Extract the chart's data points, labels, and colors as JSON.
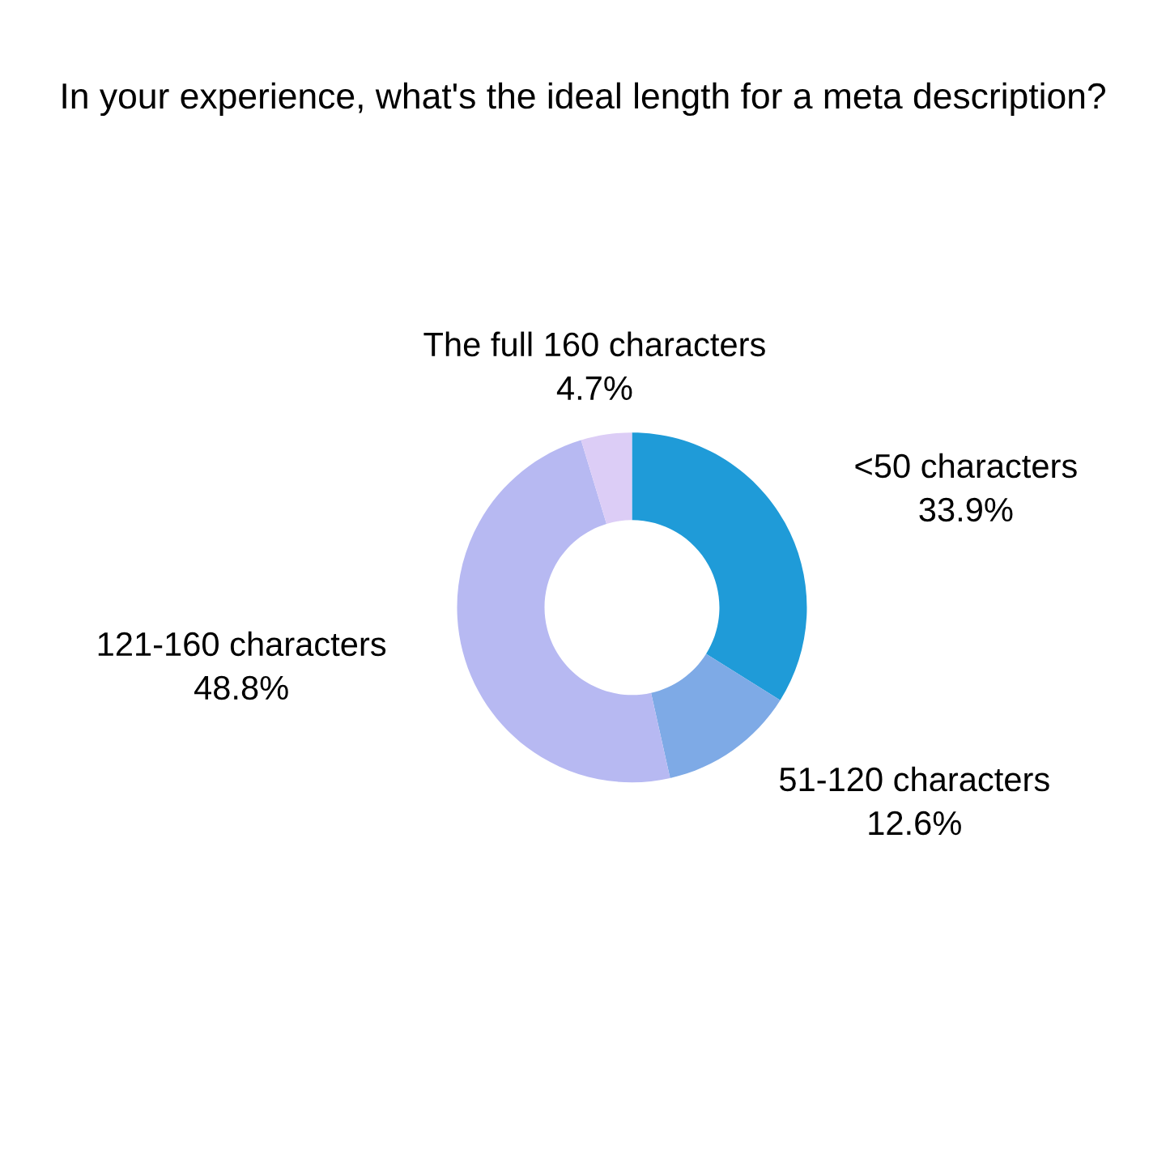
{
  "chart_data": {
    "type": "donut",
    "title": "In your experience, what's the ideal length for a meta description?",
    "categories": [
      "<50 characters",
      "51-120 characters",
      "121-160 characters",
      "The full 160 characters"
    ],
    "values": [
      33.9,
      12.6,
      48.8,
      4.7
    ],
    "value_labels": [
      "33.9%",
      "12.6%",
      "48.8%",
      "4.7%"
    ],
    "colors": [
      "#1f9bd8",
      "#7eaae6",
      "#b7b9f2",
      "#dccdf6"
    ]
  }
}
